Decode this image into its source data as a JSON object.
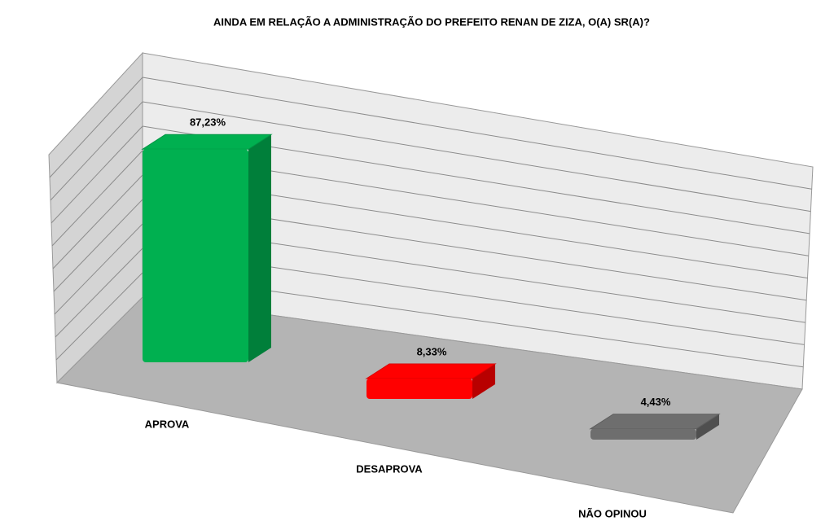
{
  "chart_data": {
    "type": "bar3d",
    "title": "AINDA EM RELAÇÃO A ADMINISTRAÇÃO DO PREFEITO RENAN DE ZIZA, O(A) SR(A)?",
    "categories": [
      "APROVA",
      "DESAPROVA",
      "NÃO OPINOU"
    ],
    "values": [
      87.23,
      8.33,
      4.43
    ],
    "value_labels": [
      "87,23%",
      "8,33%",
      "4,43%"
    ],
    "colors": [
      "#00b050",
      "#ff0000",
      "#6e6e6e"
    ],
    "ylim": [
      0,
      100
    ]
  }
}
